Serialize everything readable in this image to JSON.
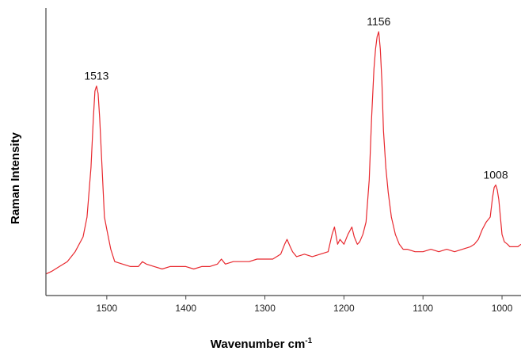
{
  "chart_data": {
    "type": "line",
    "title": "",
    "xlabel": "Wavenumber cm",
    "xlabel_sup": "-1",
    "ylabel": "Raman Intensity",
    "xlim": [
      1577,
      976
    ],
    "ylim": [
      0,
      100
    ],
    "x_reversed": true,
    "x_ticks": [
      1500,
      1400,
      1300,
      1200,
      1100,
      1000
    ],
    "y_ticks_shown": false,
    "grid": false,
    "line_color": "#e8282e",
    "peak_labels": [
      {
        "x": 1513,
        "text": "1513"
      },
      {
        "x": 1156,
        "text": "1156"
      },
      {
        "x": 1008,
        "text": "1008"
      }
    ],
    "series": [
      {
        "x": [
          1577,
          1570,
          1560,
          1550,
          1540,
          1530,
          1525,
          1520,
          1517,
          1515,
          1513,
          1511,
          1509,
          1506,
          1503,
          1500,
          1495,
          1490,
          1480,
          1470,
          1460,
          1455,
          1450,
          1440,
          1430,
          1420,
          1410,
          1400,
          1390,
          1380,
          1370,
          1360,
          1355,
          1350,
          1340,
          1330,
          1320,
          1310,
          1300,
          1290,
          1280,
          1275,
          1272,
          1268,
          1265,
          1260,
          1250,
          1240,
          1230,
          1220,
          1215,
          1212,
          1208,
          1205,
          1200,
          1195,
          1190,
          1187,
          1183,
          1180,
          1176,
          1172,
          1168,
          1165,
          1162,
          1160,
          1158,
          1156,
          1154,
          1152,
          1150,
          1147,
          1144,
          1140,
          1135,
          1130,
          1125,
          1120,
          1110,
          1100,
          1090,
          1080,
          1070,
          1060,
          1050,
          1040,
          1035,
          1030,
          1025,
          1020,
          1015,
          1012,
          1010,
          1008,
          1006,
          1004,
          1002,
          1000,
          997,
          993,
          990,
          985,
          980,
          976
        ],
        "y": [
          2,
          3,
          5,
          7,
          11,
          17,
          25,
          45,
          65,
          76,
          78,
          75,
          65,
          45,
          25,
          20,
          12,
          7,
          6,
          5,
          5,
          7,
          6,
          5,
          4,
          5,
          5,
          5,
          4,
          5,
          5,
          6,
          8,
          6,
          7,
          7,
          7,
          8,
          8,
          8,
          10,
          14,
          16,
          13,
          11,
          9,
          10,
          9,
          10,
          11,
          18,
          21,
          14,
          16,
          14,
          18,
          21,
          17,
          14,
          15,
          18,
          23,
          40,
          65,
          85,
          93,
          98,
          100,
          93,
          80,
          60,
          45,
          35,
          25,
          18,
          14,
          12,
          12,
          11,
          11,
          12,
          11,
          12,
          11,
          12,
          13,
          14,
          16,
          20,
          23,
          25,
          33,
          37,
          38,
          36,
          32,
          25,
          18,
          15,
          14,
          13,
          13,
          13,
          14
        ]
      }
    ]
  }
}
